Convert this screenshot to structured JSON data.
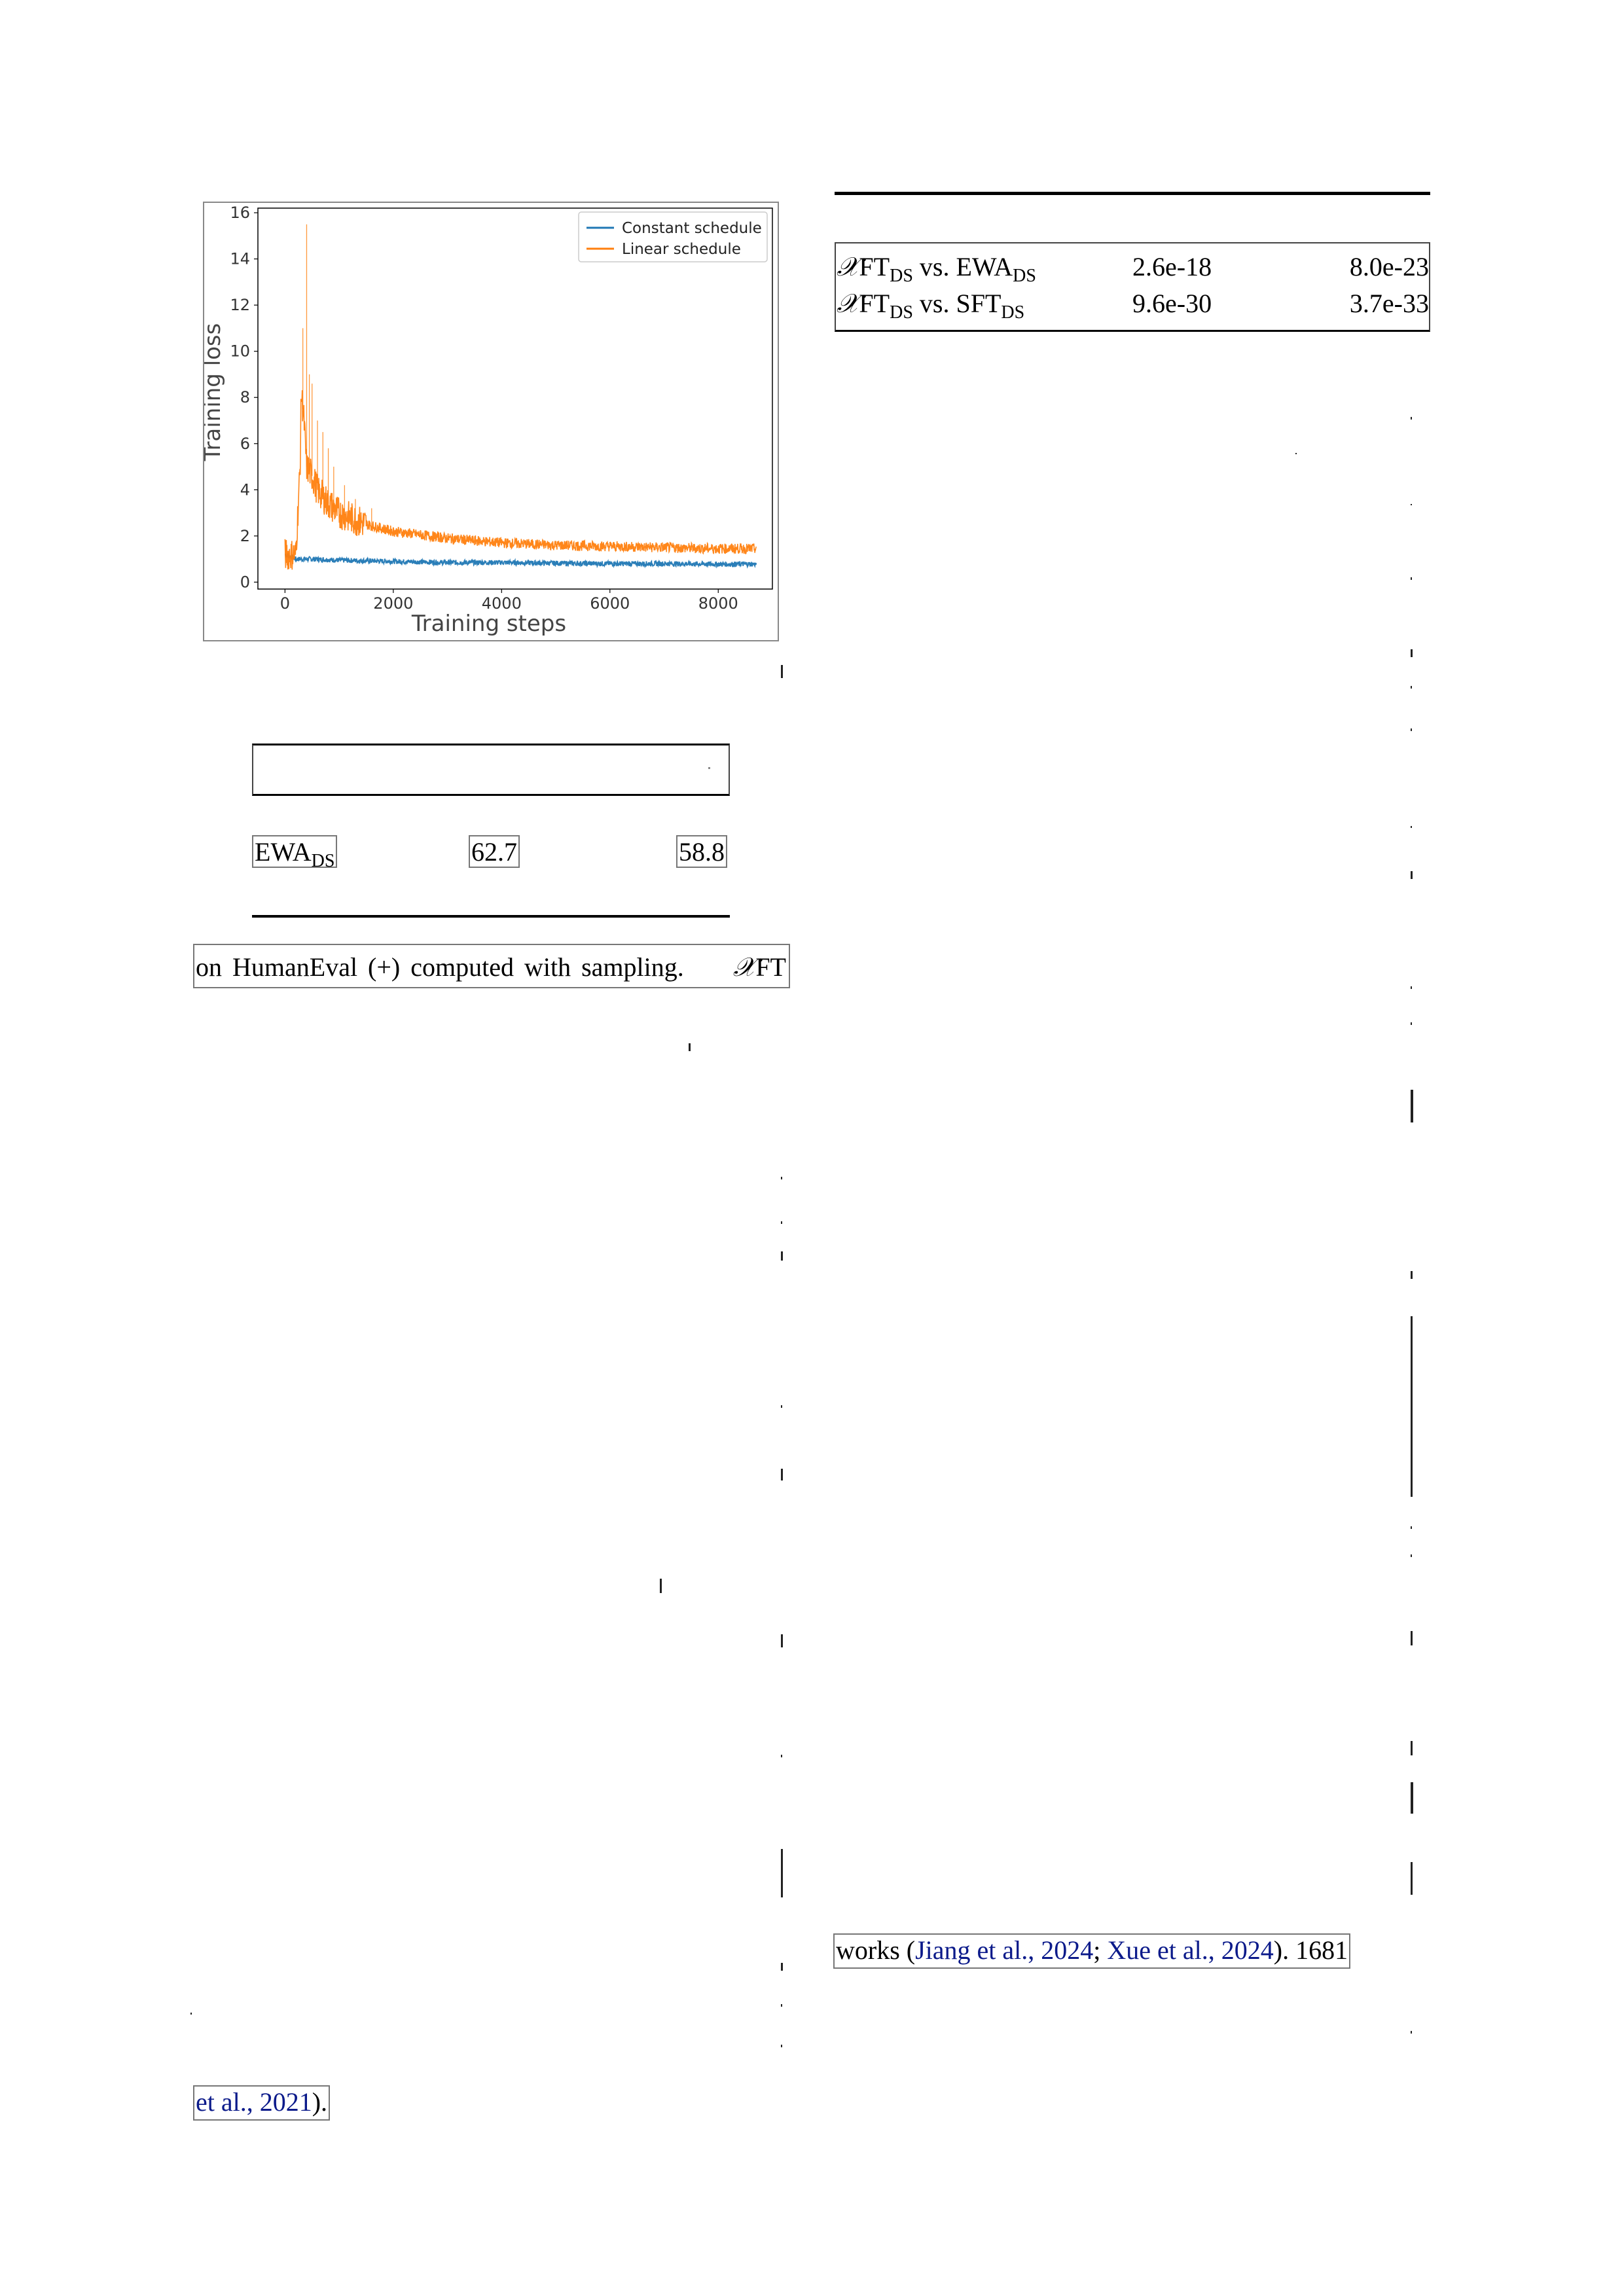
{
  "figure": {
    "chart_data": {
      "type": "line",
      "xlabel": "Training steps",
      "ylabel": "Training loss",
      "xlim": [
        -500,
        9000
      ],
      "ylim": [
        -0.3,
        16.2
      ],
      "xticks": [
        0,
        2000,
        4000,
        6000,
        8000
      ],
      "yticks": [
        0,
        2,
        4,
        6,
        8,
        10,
        12,
        14,
        16
      ],
      "legend_position": "top-right",
      "series": [
        {
          "name": "Constant schedule",
          "color": "#1f77b4",
          "x": [
            0,
            100,
            200,
            300,
            500,
            1000,
            2000,
            3000,
            4000,
            5000,
            6000,
            7000,
            8000,
            8700
          ],
          "y": [
            1.2,
            1.1,
            1.0,
            1.0,
            1.0,
            0.95,
            0.9,
            0.85,
            0.85,
            0.82,
            0.8,
            0.8,
            0.78,
            0.78
          ]
        },
        {
          "name": "Linear schedule",
          "color": "#ff7f0e",
          "x": [
            0,
            200,
            280,
            300,
            350,
            400,
            450,
            500,
            600,
            800,
            1000,
            1500,
            2000,
            3000,
            4000,
            5000,
            6000,
            7000,
            8000,
            8700
          ],
          "y": [
            1.2,
            1.2,
            5.0,
            8.2,
            7.0,
            5.0,
            4.8,
            4.6,
            4.0,
            3.4,
            3.0,
            2.5,
            2.2,
            1.9,
            1.7,
            1.6,
            1.55,
            1.5,
            1.45,
            1.45
          ],
          "spikes": [
            [
              330,
              11.0
            ],
            [
              400,
              15.5
            ],
            [
              450,
              9.0
            ],
            [
              500,
              8.6
            ],
            [
              600,
              7.0
            ],
            [
              700,
              6.5
            ],
            [
              800,
              5.8
            ],
            [
              900,
              5.0
            ],
            [
              1100,
              4.2
            ],
            [
              1300,
              3.6
            ],
            [
              1600,
              3.2
            ]
          ]
        }
      ]
    }
  },
  "table_left": {
    "row": {
      "method": "EWA",
      "method_sub": "DS",
      "col1": "62.7",
      "col2": "58.8"
    }
  },
  "caption_fragment": {
    "text": "on HumanEval (+) computed with sampling.",
    "trail_symbol": "𝒳",
    "trail_text": "FT"
  },
  "table_right": {
    "rows": [
      {
        "a_sym": "𝒳",
        "a": "FT",
        "a_sub": "DS",
        "vs": "vs.",
        "b": "EWA",
        "b_sub": "DS",
        "p1": "2.6e-18",
        "p2": "8.0e-23"
      },
      {
        "a_sym": "𝒳",
        "a": "FT",
        "a_sub": "DS",
        "vs": "vs.",
        "b": "SFT",
        "b_sub": "DS",
        "p1": "9.6e-30",
        "p2": "3.7e-33"
      }
    ]
  },
  "right_text_fragment": {
    "prefix": "works (",
    "cite1": "Jiang et al., 2024",
    "sep": "; ",
    "cite2": "Xue et al., 2024",
    "suffix": "). 1681"
  },
  "left_text_fragment": {
    "cite": "et al., 2021",
    "suffix": ")."
  }
}
